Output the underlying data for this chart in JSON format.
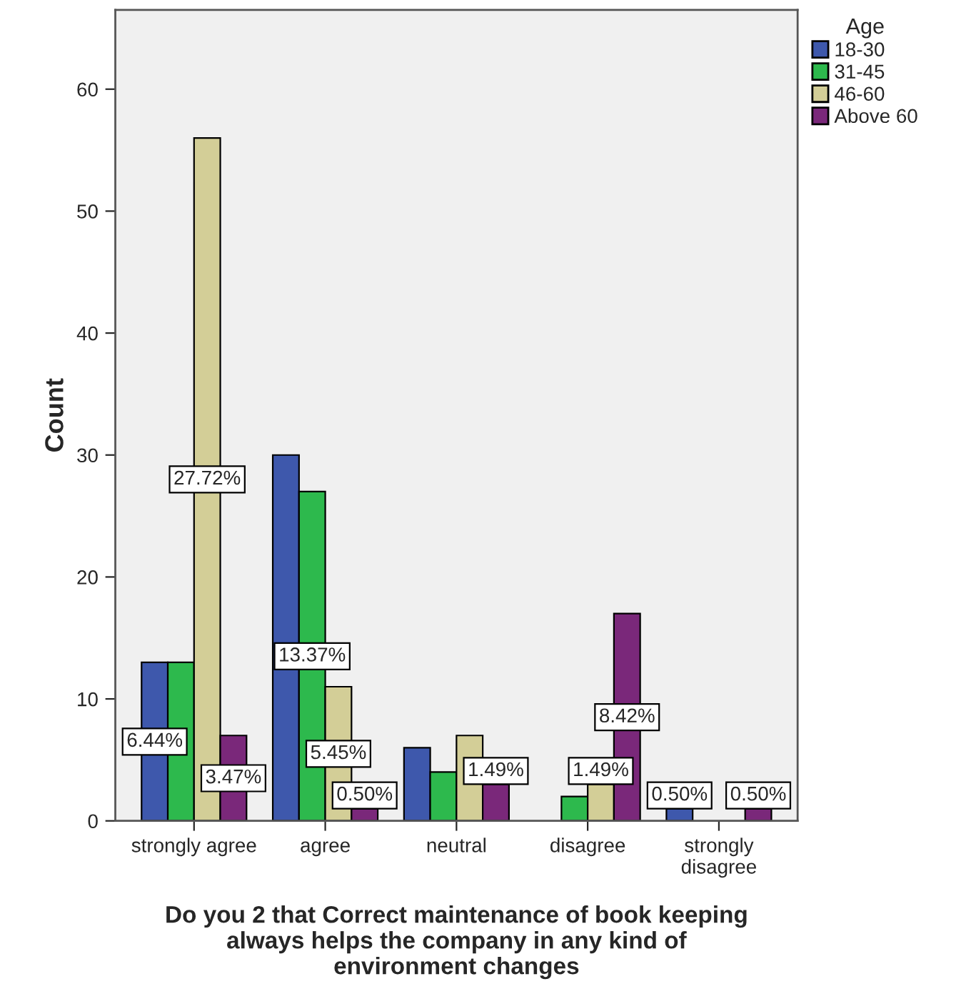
{
  "chart_data": {
    "type": "bar",
    "xlabel": "Do you 2 that Correct maintenance of book keeping\nalways helps the company in any kind of\nenvironment changes",
    "ylabel": "Count",
    "legend_title": "Age",
    "legend": "right",
    "categories": [
      "strongly agree",
      "agree",
      "neutral",
      "disagree",
      "strongly\ndisagree"
    ],
    "series": [
      {
        "name": "18-30",
        "color": "#3e58ac",
        "values": [
          13,
          30,
          6,
          0,
          1
        ]
      },
      {
        "name": "31-45",
        "color": "#2db94d",
        "values": [
          13,
          27,
          4,
          2,
          0
        ]
      },
      {
        "name": "46-60",
        "color": "#d3ce97",
        "values": [
          56,
          11,
          7,
          3,
          0
        ]
      },
      {
        "name": "Above 60",
        "color": "#7a287a",
        "values": [
          7,
          1,
          3,
          17,
          1
        ]
      }
    ],
    "annotations": [
      "6.44%",
      "27.72%",
      "3.47%",
      "13.37%",
      "5.45%",
      "0.50%",
      "1.49%",
      "1.49%",
      "8.42%",
      "0.50%",
      "0.50%"
    ],
    "ylim": [
      0,
      66.5
    ],
    "yticks": [
      0,
      10,
      20,
      30,
      40,
      50,
      60
    ],
    "grid": false
  }
}
